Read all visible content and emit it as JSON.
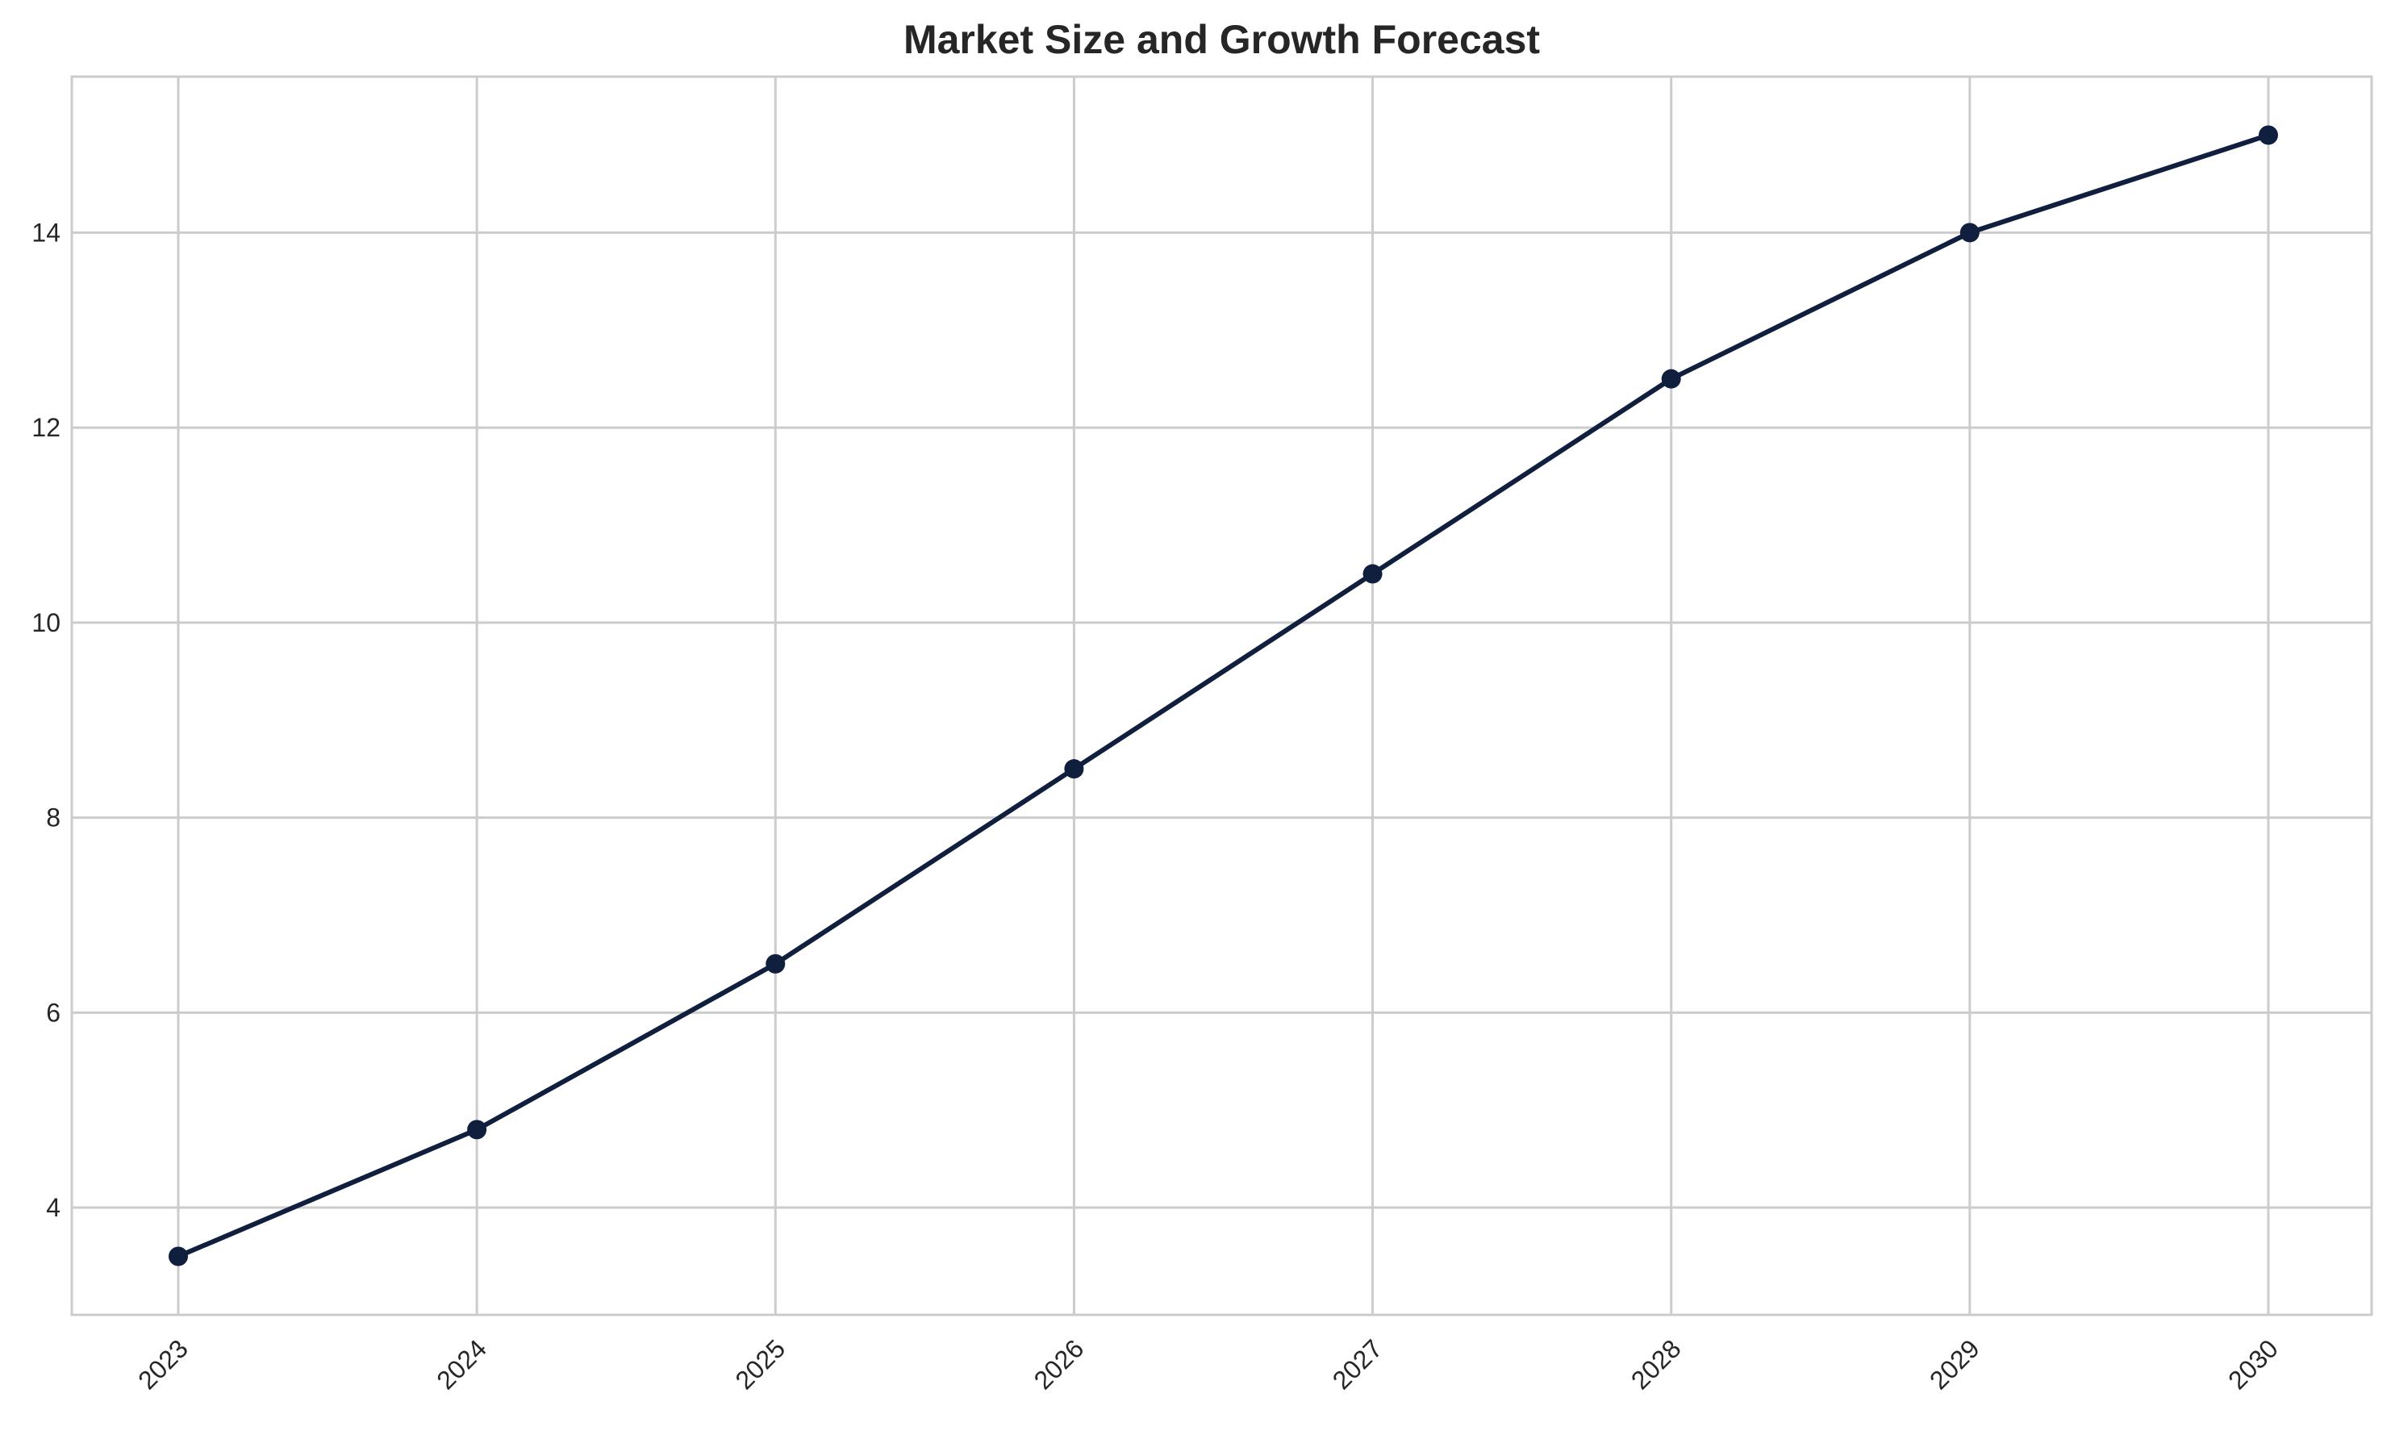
{
  "colors": {
    "line": "#0f1f3d",
    "grid": "#cccccc",
    "text": "#262626",
    "background": "#ffffff"
  },
  "chart_data": {
    "type": "line",
    "title": "Market Size and Growth Forecast",
    "xlabel": "",
    "ylabel": "",
    "categories": [
      "2023",
      "2024",
      "2025",
      "2026",
      "2027",
      "2028",
      "2029",
      "2030"
    ],
    "series": [
      {
        "values": [
          3.5,
          4.8,
          6.5,
          8.5,
          10.5,
          12.5,
          14.0,
          15.0
        ],
        "marker": "circle"
      }
    ],
    "yticks": [
      4,
      6,
      8,
      10,
      12,
      14
    ],
    "ylim": [
      2.9,
      15.6
    ],
    "grid": true,
    "legend": "none",
    "xtick_rotation": -45
  }
}
